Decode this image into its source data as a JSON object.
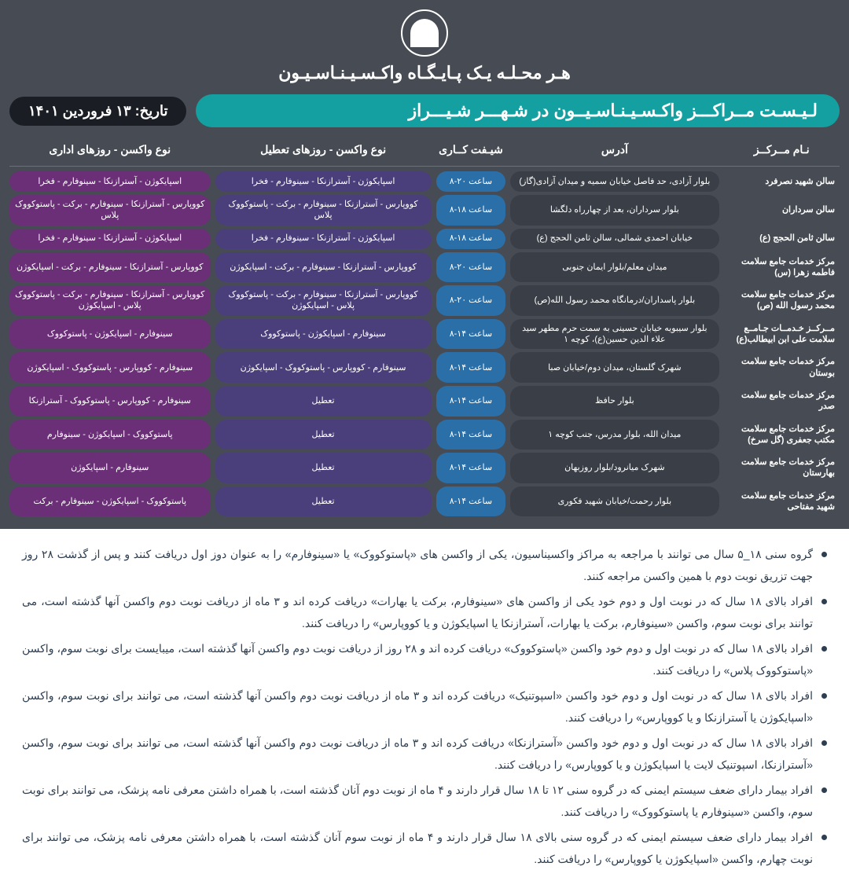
{
  "colors": {
    "bg_dark": "#474c54",
    "teal": "#14a0a0",
    "black_pill": "#1a1d24",
    "addr_bg": "#3a3f47",
    "shift_bg": "#2a6fa8",
    "vac1_bg": "#4a3f7a",
    "vac2_bg": "#6b2f78"
  },
  "header": {
    "top_title": "هـر محـلـه یـک پـایـگـاه واکـسـیـنـاسـیـون",
    "main_title": "لـیـسـت مــراکـــز واکـسـیـنـاسـیــون در شـهـــر شـیـــراز",
    "date": "تاریخ: ۱۳ فروردین ۱۴۰۱"
  },
  "columns": {
    "name": "نـام مــرکــز",
    "addr": "آدرس",
    "shift": "شیـفت کــاری",
    "vac_holiday": "نوع واکسن - روزهای تعطیل",
    "vac_work": "نوع واکسن - روزهای اداری"
  },
  "rows": [
    {
      "name": "سالن شهید نصرفرد",
      "addr": "بلوار آزادی، حد فاصل خیابان سمیه و میدان آزادی(گاز)",
      "shift": "ساعت ۲۰-۸",
      "vac1": "اسپایکوژن - آسترازنکا - سینوفارم - فخرا",
      "vac2": "اسپایکوژن - آسترازنکا - سینوفارم - فخرا"
    },
    {
      "name": "سالن سرداران",
      "addr": "بلوار سرداران، بعد از چهارراه دلگشا",
      "shift": "ساعت ۱۸-۸",
      "vac1": "کووپارس - آسترازنکا - سینوفارم - برکت - پاستوکووک پلاس",
      "vac2": "کووپارس - آسترازنکا - سینوفارم - برکت - پاستوکووک پلاس"
    },
    {
      "name": "سالن ثامن الحجج (ع)",
      "addr": "خیابان احمدی شمالی، سالن ثامن الحجج (ع)",
      "shift": "ساعت ۱۸-۸",
      "vac1": "اسپایکوژن - آسترازنکا - سینوفارم - فخرا",
      "vac2": "اسپایکوژن - آسترازنکا - سینوفارم - فخرا"
    },
    {
      "name": "مرکز خدمات جامع سلامت فاطمه زهرا (س)",
      "addr": "میدان معلم/بلوار ایمان جنوبی",
      "shift": "ساعت ۲۰-۸",
      "vac1": "کووپارس - آسترازنکا - سینوفارم - برکت - اسپایکوژن",
      "vac2": "کووپارس - آسترازنکا - سینوفارم - برکت - اسپایکوژن"
    },
    {
      "name": "مرکز خدمات جامع سلامت محمد رسول الله (ص)",
      "addr": "بلوار پاسداران/درمانگاه محمد رسول الله(ص)",
      "shift": "ساعت ۲۰-۸",
      "vac1": "کووپارس - آسترازنکا - سینوفارم - برکت - پاستوکووک پلاس - اسپایکوژن",
      "vac2": "کووپارس - آسترازنکا - سینوفارم - برکت - پاستوکووک پلاس - اسپایکوژن"
    },
    {
      "name": "مــرکــز خـدمــات جـامــع سلامت علی ابن ابیطالب(ع)",
      "addr": "بلوار سیبویه خیابان حسینی به سمت حرم مطهر سید علاء الدین حسین(ع)، کوچه ۱",
      "shift": "ساعت ۱۴-۸",
      "vac1": "سینوفارم - اسپایکوژن - پاستوکووک",
      "vac2": "سینوفارم - اسپایکوژن - پاستوکووک"
    },
    {
      "name": "مرکز خدمات جامع سلامت بوستان",
      "addr": "شهرک گلستان، میدان دوم/خیابان صبا",
      "shift": "ساعت ۱۴-۸",
      "vac1": "سینوفارم - کووپارس - پاستوکووک - اسپایکوژن",
      "vac2": "سینوفارم - کووپارس - پاستوکووک - اسپایکوژن"
    },
    {
      "name": "مرکز خدمات جامع سلامت صدر",
      "addr": "بلوار حافظ",
      "shift": "ساعت ۱۴-۸",
      "vac1": "تعطیل",
      "vac2": "سینوفارم - کووپارس - پاستوکووک - آسترازنکا"
    },
    {
      "name": "مرکز خدمات جامع سلامت مکتب جعفری (گل سرخ)",
      "addr": "میدان الله، بلوار مدرس، جنب کوچه ۱",
      "shift": "ساعت ۱۴-۸",
      "vac1": "تعطیل",
      "vac2": "پاستوکووک - اسپایکوژن - سینوفارم"
    },
    {
      "name": "مرکز خدمات جامع سلامت بهارستان",
      "addr": "شهرک میانرود/بلوار روزبهان",
      "shift": "ساعت ۱۴-۸",
      "vac1": "تعطیل",
      "vac2": "سینوفارم - اسپایکوژن"
    },
    {
      "name": "مرکز خدمات جامع سلامت شهید مفتاحی",
      "addr": "بلوار رحمت/خیابان شهید فکوری",
      "shift": "ساعت ۱۴-۸",
      "vac1": "تعطیل",
      "vac2": "پاستوکووک - اسپایکوژن - سینوفارم - برکت"
    }
  ],
  "notes": [
    "گروه سنی ۱۸_۵ سال می توانند با مراجعه به مراکز واکسیناسیون، یکی از واکسن های «پاستوکووک» یا «سینوفارم» را به عنوان دوز اول دریافت کنند و پس از گذشت ۲۸ روز جهت تزریق نوبت دوم با همین واکسن مراجعه کنند.",
    "افراد بالای ۱۸ سال که در نوبت اول و دوم خود یکی از واکسن های «سینوفارم، برکت یا بهارات» دریافت کرده اند و ۳ ماه از دریافت نوبت دوم واکسن آنها گذشته است، می توانند برای نوبت سوم، واکسن «سینوفارم، برکت یا بهارات، آسترازنکا یا اسپایکوژن و یا کووپارس» را دریافت کنند.",
    "افراد بالای ۱۸ سال که در نوبت اول و دوم خود واکسن «پاستوکووک» دریافت کرده اند و ۲۸ روز از دریافت نوبت دوم واکسن آنها گذشته است، میبایست برای نوبت سوم، واکسن «پاستوکووک پلاس» را دریافت کنند.",
    "افراد بالای ۱۸ سال که در نوبت اول و دوم خود واکسن «اسپوتنیک» دریافت کرده اند و ۳ ماه از دریافت نوبت دوم واکسن آنها گذشته است، می توانند برای نوبت سوم، واکسن «اسپایکوژن یا آسترازنکا و یا کووپارس» را دریافت کنند.",
    "افراد بالای ۱۸ سال که در نوبت اول و دوم خود واکسن «آسترازنکا» دریافت کرده اند و ۳ ماه از دریافت نوبت دوم واکسن آنها گذشته است، می توانند برای نوبت سوم، واکسن «آسترازنکا، اسپوتنیک لایت یا اسپایکوژن و یا کووپارس» را دریافت کنند.",
    "افراد بیمار دارای ضعف سیستم ایمنی که در گروه سنی ۱۲ تا ۱۸ سال قرار دارند و ۴ ماه از نوبت دوم آنان گذشته است، با همراه داشتن معرفی نامه پزشک، می توانند برای نوبت سوم، واکسن «سینوفارم یا پاستوکووک» را دریافت کنند.",
    "افراد بیمار دارای ضعف سیستم ایمنی که در گروه سنی بالای ۱۸ سال قرار دارند و ۴ ماه از نوبت سوم آنان گذشته است، با همراه داشتن معرفی نامه پزشک، می توانند برای نوبت چهارم، واکسن «اسپایکوژن یا کووپارس» را دریافت کنند."
  ]
}
